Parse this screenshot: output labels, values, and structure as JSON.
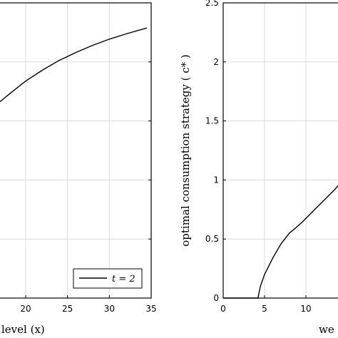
{
  "chart_data": [
    {
      "type": "line",
      "panel": "left",
      "xlabel": "level (x)",
      "xlim": [
        15,
        35
      ],
      "xticks": [
        20,
        25,
        30,
        35
      ],
      "grid": true,
      "legend": {
        "placement": "bottom-right",
        "entries": [
          "t = 2"
        ]
      },
      "series": [
        {
          "name": "t = 2",
          "x": [
            15,
            16.5,
            18,
            20,
            22,
            24,
            26,
            28,
            30,
            32,
            34.5
          ],
          "y": [
            0.62,
            0.655,
            0.69,
            0.735,
            0.772,
            0.805,
            0.832,
            0.856,
            0.877,
            0.895,
            0.915
          ]
        }
      ]
    },
    {
      "type": "line",
      "panel": "right",
      "ylabel": "optimal consumption strategy ( c* )",
      "xlabel": "we",
      "xlim": [
        0,
        14
      ],
      "ylim": [
        0,
        2.5
      ],
      "xticks": [
        0,
        5,
        10
      ],
      "yticks": [
        0,
        0.5,
        1,
        1.5,
        2,
        2.5
      ],
      "ytick_labels": [
        "0",
        "0.5",
        "1",
        "1.5",
        "2",
        "2.5"
      ],
      "grid": true,
      "series": [
        {
          "x": [
            0,
            4.2,
            4.5,
            5,
            6,
            7,
            8,
            8.7,
            9.5,
            10.5,
            11.5,
            12.5,
            13.5,
            14
          ],
          "y": [
            0,
            0,
            0.1,
            0.2,
            0.34,
            0.46,
            0.55,
            0.59,
            0.64,
            0.71,
            0.78,
            0.85,
            0.92,
            0.96
          ]
        }
      ]
    }
  ]
}
